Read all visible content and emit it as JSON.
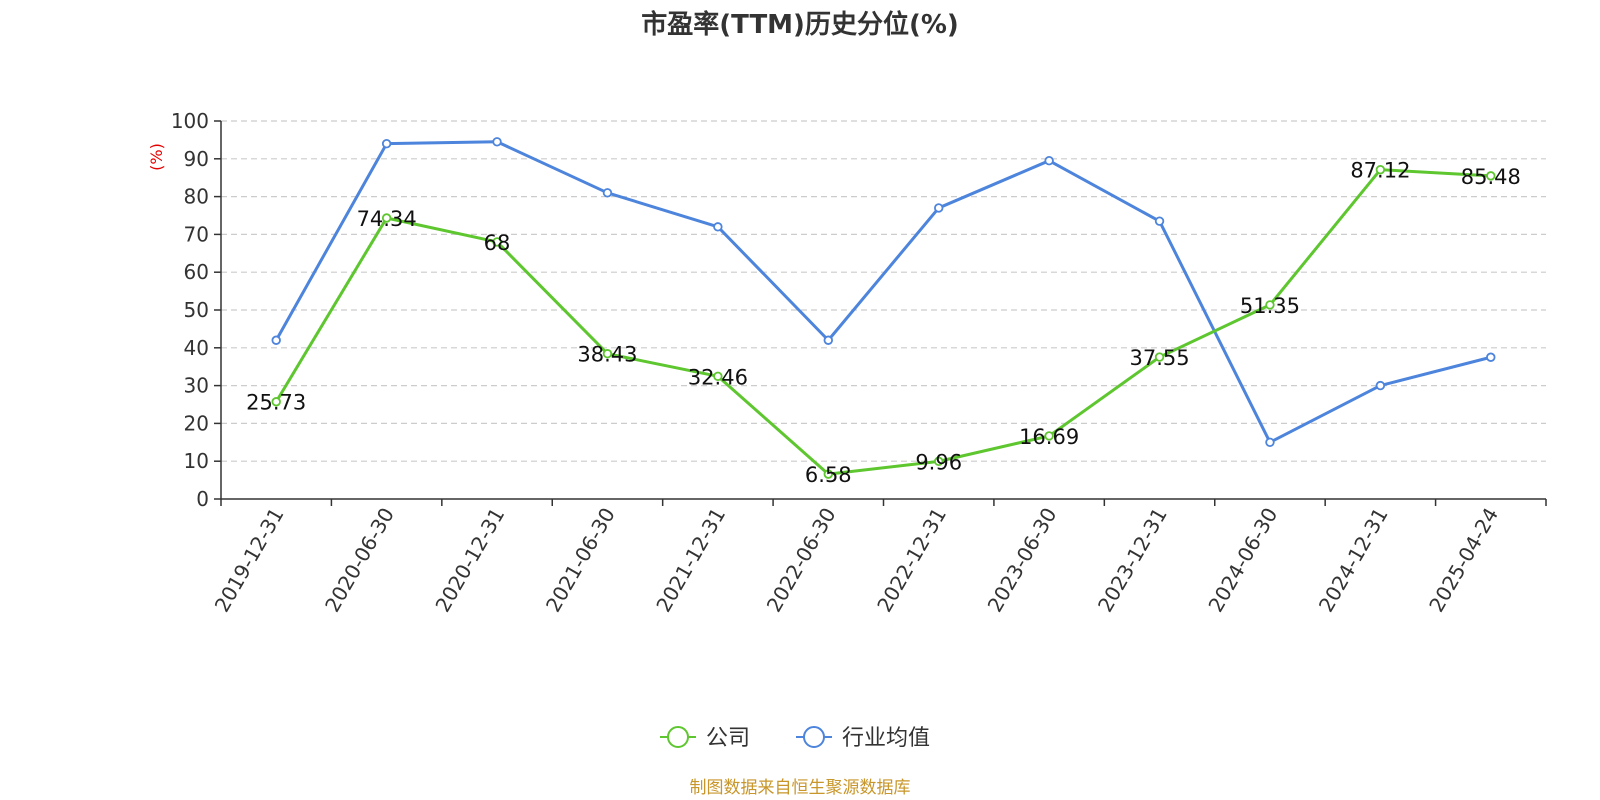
{
  "chart_data": {
    "type": "line",
    "title": "市盈率(TTM)历史分位(%)",
    "ylabel": "(%)",
    "ylim": [
      0,
      100
    ],
    "yticks": [
      0,
      10,
      20,
      30,
      40,
      50,
      60,
      70,
      80,
      90,
      100
    ],
    "grid": true,
    "legend_position": "bottom-center",
    "categories": [
      "2019-12-31",
      "2020-06-30",
      "2020-12-31",
      "2021-06-30",
      "2021-12-31",
      "2022-06-30",
      "2022-12-31",
      "2023-06-30",
      "2023-12-31",
      "2024-06-30",
      "2024-12-31",
      "2025-04-24"
    ],
    "series": [
      {
        "name": "公司",
        "color": "#5ec62f",
        "show_labels": true,
        "values": [
          25.73,
          74.34,
          68,
          38.43,
          32.46,
          6.58,
          9.96,
          16.69,
          37.55,
          51.35,
          87.12,
          85.48
        ]
      },
      {
        "name": "行业均值",
        "color": "#4d84dc",
        "show_labels": false,
        "values": [
          42,
          94,
          94.5,
          81,
          72,
          42,
          77,
          89.5,
          73.5,
          15,
          30,
          37.5
        ]
      }
    ],
    "source": "制图数据来自恒生聚源数据库"
  },
  "colors": {
    "axis": "#333333",
    "grid": "#cccccc",
    "unit_label": "#e60000",
    "source_text": "#c8962a"
  }
}
